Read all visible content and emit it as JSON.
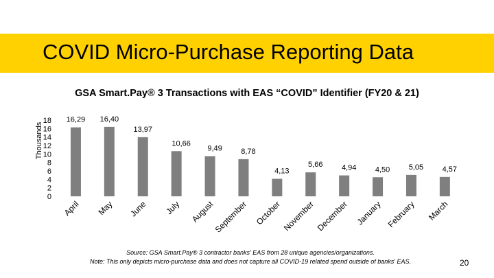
{
  "slide": {
    "title": "COVID Micro-Purchase Reporting Data",
    "page_number": "20",
    "accent_color": "#ffd100"
  },
  "footnote": {
    "source": "Source: GSA Smart.Pay® 3 contractor banks' EAS from 28 unique agencies/organizations.",
    "note": "Note: This only depicts micro-purchase data and does not capture all COVID-19 related spend outside of banks' EAS."
  },
  "chart_data": {
    "type": "bar",
    "title": "GSA Smart.Pay® 3 Transactions with EAS “COVID” Identifier (FY20 & 21)",
    "xlabel": "",
    "ylabel": "Thousands",
    "ylim": [
      0,
      18
    ],
    "yticks": [
      "0",
      "2",
      "4",
      "6",
      "8",
      "10",
      "12",
      "14",
      "16",
      "18"
    ],
    "grid": false,
    "legend": "none",
    "bar_color": "#7f7f7f",
    "categories": [
      "April",
      "May",
      "June",
      "July",
      "August",
      "September",
      "October",
      "November",
      "December",
      "January",
      "February",
      "March"
    ],
    "values": [
      16.29,
      16.4,
      13.97,
      10.66,
      9.49,
      8.78,
      4.13,
      5.66,
      4.94,
      4.5,
      5.05,
      4.57
    ],
    "data_labels": [
      "16,29",
      "16,40",
      "13,97",
      "10,66",
      "9,49",
      "8,78",
      "4,13",
      "5,66",
      "4,94",
      "4,50",
      "5,05",
      "4,57"
    ]
  }
}
